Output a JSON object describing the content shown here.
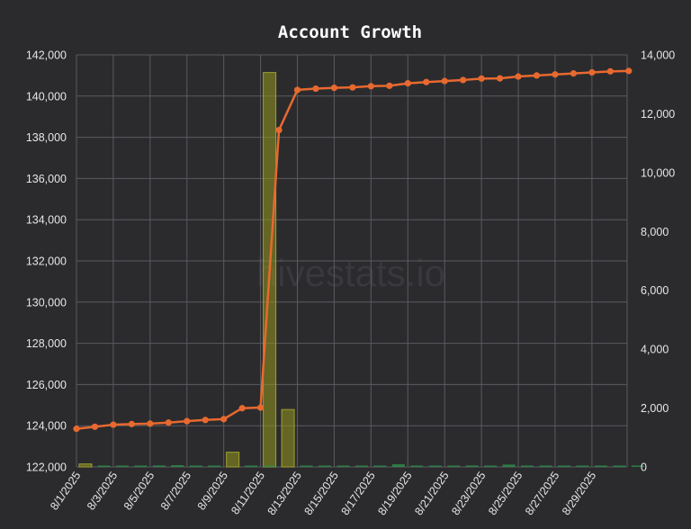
{
  "chart_data": {
    "type": "line",
    "title": "Account Growth",
    "watermark": "hivestats.io",
    "x": [
      "8/1/2025",
      "8/2/2025",
      "8/3/2025",
      "8/4/2025",
      "8/5/2025",
      "8/6/2025",
      "8/7/2025",
      "8/8/2025",
      "8/9/2025",
      "8/10/2025",
      "8/11/2025",
      "8/12/2025",
      "8/13/2025",
      "8/14/2025",
      "8/15/2025",
      "8/16/2025",
      "8/17/2025",
      "8/18/2025",
      "8/19/2025",
      "8/20/2025",
      "8/21/2025",
      "8/22/2025",
      "8/23/2025",
      "8/24/2025",
      "8/25/2025",
      "8/26/2025",
      "8/27/2025",
      "8/28/2025",
      "8/29/2025",
      "8/30/2025",
      "8/31/2025"
    ],
    "x_tick_labels": [
      "8/1/2025",
      "8/3/2025",
      "8/5/2025",
      "8/7/2025",
      "8/9/2025",
      "8/11/2025",
      "8/13/2025",
      "8/15/2025",
      "8/17/2025",
      "8/19/2025",
      "8/21/2025",
      "8/23/2025",
      "8/25/2025",
      "8/27/2025",
      "8/29/2025"
    ],
    "y_left": {
      "ticks": [
        122000,
        124000,
        126000,
        128000,
        130000,
        132000,
        134000,
        136000,
        138000,
        140000,
        142000
      ],
      "tick_labels": [
        "122,000",
        "124,000",
        "126,000",
        "128,000",
        "130,000",
        "132,000",
        "134,000",
        "136,000",
        "138,000",
        "140,000",
        "142,000"
      ],
      "lim": [
        122000,
        142000
      ]
    },
    "y_right": {
      "ticks": [
        0,
        2000,
        4000,
        6000,
        8000,
        10000,
        12000,
        14000
      ],
      "tick_labels": [
        "0",
        "2,000",
        "4,000",
        "6,000",
        "8,000",
        "10,000",
        "12,000",
        "14,000"
      ],
      "lim": [
        0,
        14000
      ]
    },
    "grid": true,
    "series": [
      {
        "type": "line",
        "axis": "left",
        "color": "#e8692f",
        "values": [
          123850,
          123950,
          124050,
          124080,
          124100,
          124150,
          124220,
          124280,
          124320,
          124850,
          124880,
          138350,
          140300,
          140360,
          140400,
          140420,
          140480,
          140500,
          140620,
          140680,
          140730,
          140780,
          140850,
          140860,
          140950,
          141000,
          141050,
          141100,
          141150,
          141200,
          141220
        ]
      },
      {
        "type": "bar",
        "axis": "right",
        "color": "#8a8a1f",
        "values": [
          100,
          0,
          0,
          0,
          0,
          0,
          0,
          0,
          500,
          0,
          13400,
          1950,
          0,
          0,
          0,
          0,
          0,
          0,
          0,
          0,
          0,
          0,
          0,
          0,
          0,
          0,
          0,
          0,
          0,
          0,
          0
        ]
      },
      {
        "type": "bar",
        "axis": "right",
        "color": "#2e8b4a",
        "values": [
          0,
          40,
          20,
          10,
          50,
          60,
          40,
          30,
          0,
          40,
          40,
          0,
          20,
          30,
          20,
          40,
          20,
          90,
          40,
          30,
          20,
          50,
          30,
          80,
          20,
          40,
          30,
          30,
          30,
          30,
          30
        ]
      }
    ]
  }
}
